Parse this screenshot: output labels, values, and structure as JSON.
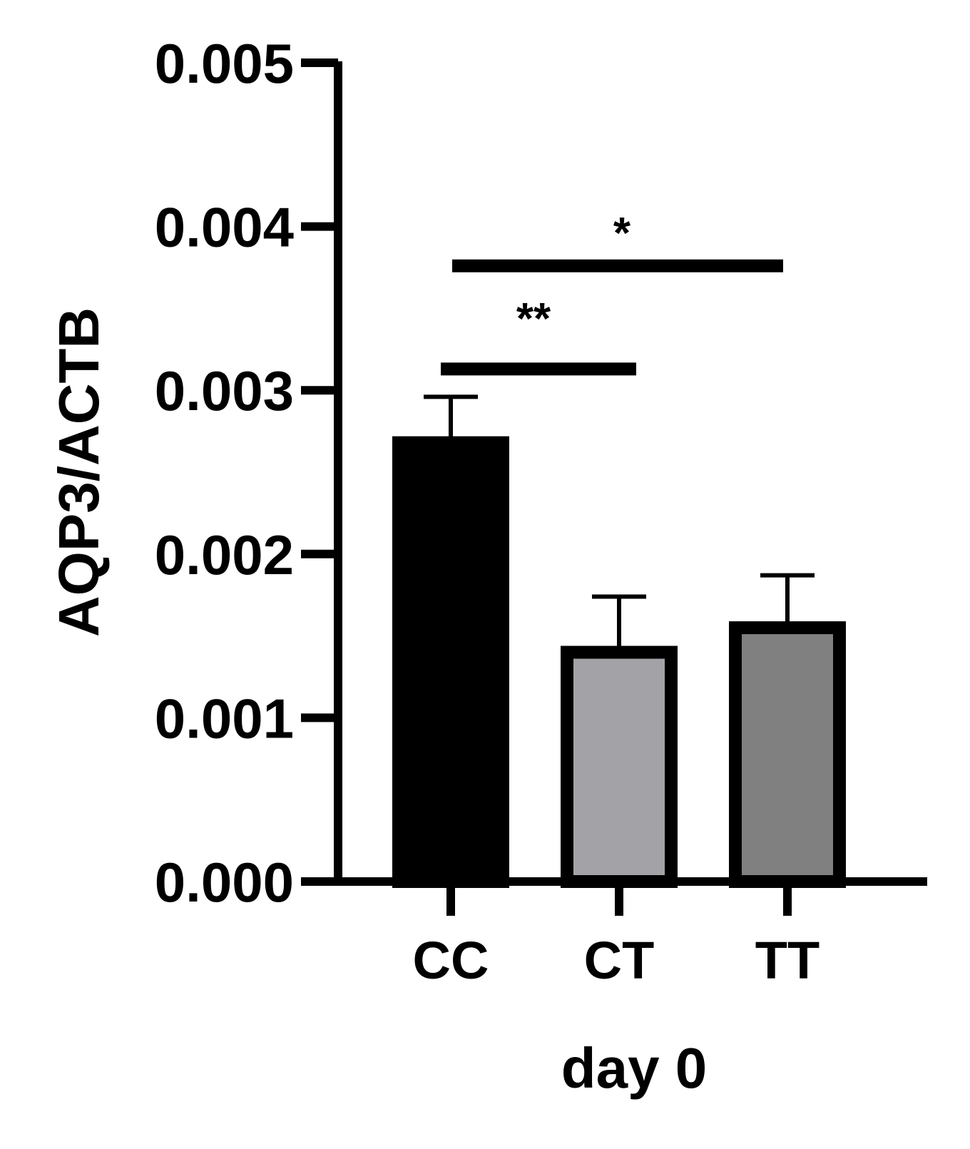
{
  "chart_data": {
    "type": "bar",
    "title": "",
    "xlabel": "day 0",
    "ylabel": "AQP3/ACTB",
    "ylim": [
      0,
      0.005
    ],
    "yticks": [
      "0.000",
      "0.001",
      "0.002",
      "0.003",
      "0.004",
      "0.005"
    ],
    "categories": [
      "CC",
      "CT",
      "TT"
    ],
    "values": [
      0.00268,
      0.0014,
      0.00155
    ],
    "errors": [
      0.00028,
      0.00034,
      0.00032
    ],
    "bar_fill_colors": [
      "#000000",
      "#a3a3a7",
      "#808080"
    ],
    "bar_edge_color": "#000000",
    "grid": false,
    "significance": [
      {
        "from": "CC",
        "to": "CT",
        "label": "**",
        "y": 0.00313
      },
      {
        "from": "CC",
        "to": "TT",
        "label": "*",
        "y": 0.00376
      }
    ]
  }
}
